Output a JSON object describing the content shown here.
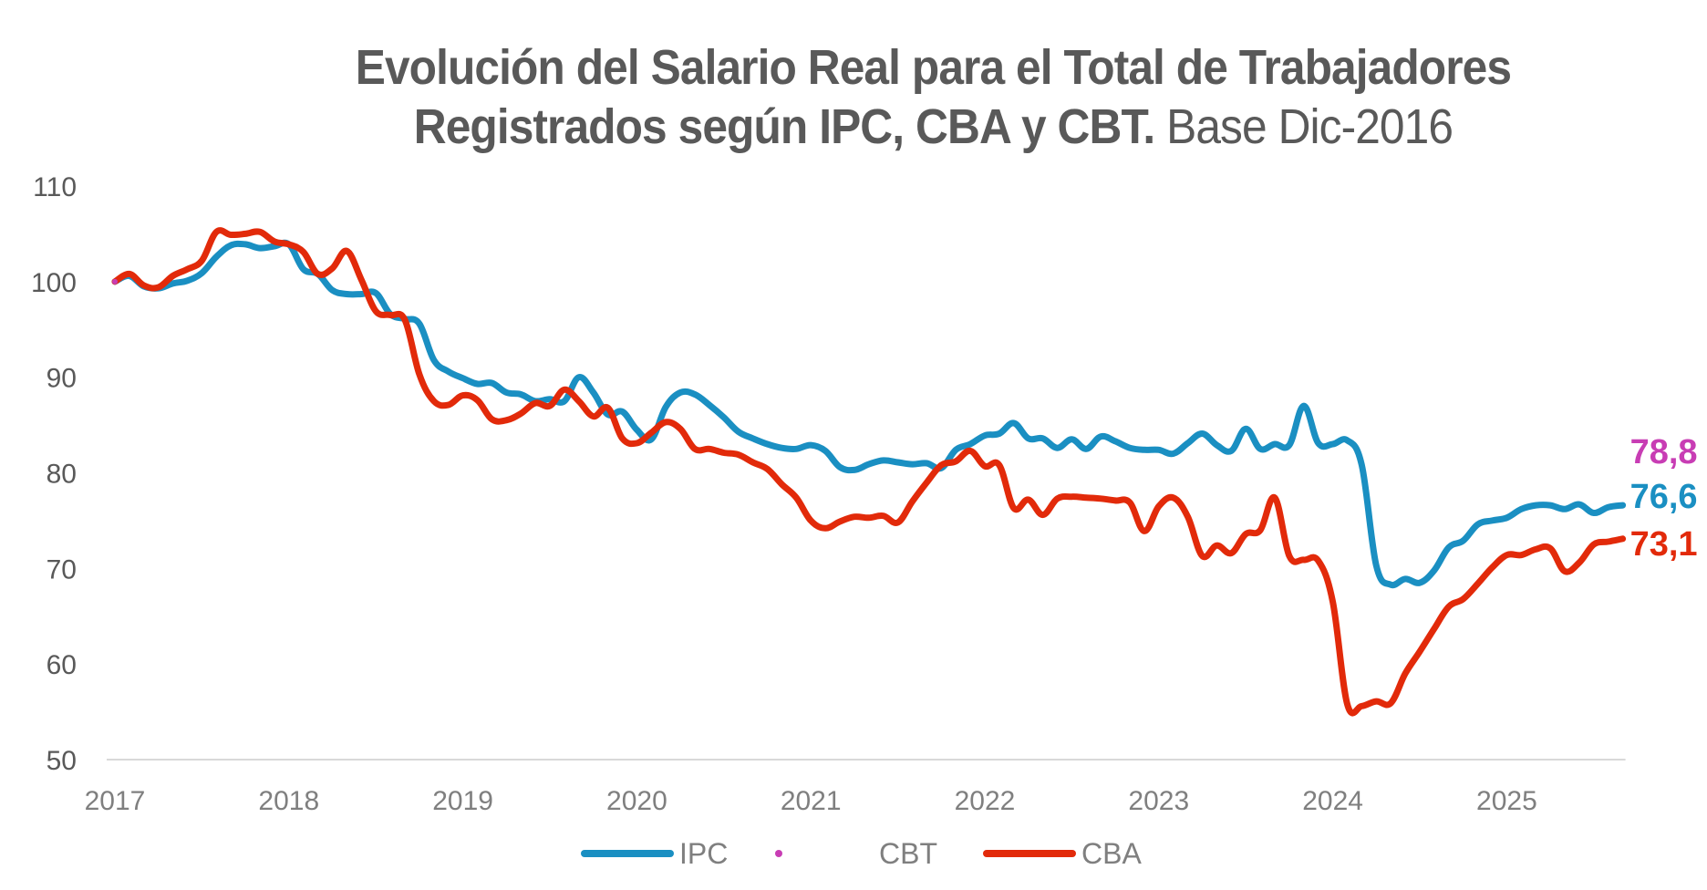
{
  "title": {
    "line1": "Evolución del Salario Real para el Total de Trabajadores",
    "line2_bold": "Registrados según IPC, CBA y CBT.",
    "line2_light": " Base Dic-2016"
  },
  "colors": {
    "IPC": "#1a8fc2",
    "CBT": "#c83db4",
    "CBA": "#e22a0a",
    "axis": "#d9d9d9",
    "text": "#595959"
  },
  "legend": [
    {
      "name": "IPC",
      "style": "line"
    },
    {
      "name": "CBT",
      "style": "dot"
    },
    {
      "name": "CBA",
      "style": "line"
    }
  ],
  "end_labels": {
    "CBT": "78,8",
    "IPC": "76,6",
    "CBA": "73,1"
  },
  "chart_data": {
    "type": "line",
    "title": "Evolución del Salario Real para el Total de Trabajadores Registrados según IPC, CBA y CBT. Base Dic-2016",
    "xlabel": "",
    "ylabel": "",
    "ylim": [
      50,
      110
    ],
    "yticks": [
      "50",
      "60",
      "70",
      "80",
      "90",
      "100",
      "110"
    ],
    "xticks": [
      "2017",
      "2018",
      "2019",
      "2020",
      "2021",
      "2022",
      "2023",
      "2024",
      "2025"
    ],
    "x_start": "Dic-2016",
    "x_end": "Jul-2025",
    "frequency": "monthly",
    "grid": false,
    "legend_position": "bottom",
    "series": [
      {
        "name": "IPC",
        "values": [
          100.0,
          100.6,
          99.5,
          99.3,
          99.8,
          100.1,
          100.9,
          102.6,
          103.8,
          103.9,
          103.5,
          103.7,
          103.9,
          101.3,
          100.8,
          99.1,
          98.7,
          98.7,
          98.8,
          96.6,
          96.1,
          95.6,
          91.8,
          90.6,
          89.9,
          89.3,
          89.4,
          88.4,
          88.2,
          87.5,
          87.7,
          87.5,
          90.0,
          88.4,
          86.1,
          86.4,
          84.5,
          83.5,
          86.9,
          88.4,
          88.2,
          87.1,
          85.8,
          84.3,
          83.6,
          83.0,
          82.6,
          82.5,
          82.9,
          82.3,
          80.6,
          80.3,
          80.9,
          81.3,
          81.1,
          80.9,
          81.0,
          80.5,
          82.4,
          83.0,
          83.9,
          84.1,
          85.2,
          83.6,
          83.6,
          82.6,
          83.5,
          82.5,
          83.8,
          83.3,
          82.6,
          82.4,
          82.4,
          82.0,
          83.1,
          84.1,
          82.9,
          82.3,
          84.6,
          82.5,
          83.0,
          82.9,
          87.0,
          83.1,
          83.0,
          83.4,
          80.8,
          70.3,
          68.3,
          68.9,
          68.5,
          69.8,
          72.2,
          72.9,
          74.6,
          75.0,
          75.3,
          76.2,
          76.6,
          76.6,
          76.2,
          76.7,
          75.8,
          76.4,
          76.6
        ],
        "last_label": "76,6"
      },
      {
        "name": "CBA",
        "values": [
          100.0,
          100.8,
          99.6,
          99.4,
          100.6,
          101.3,
          102.2,
          105.2,
          104.9,
          105.0,
          105.2,
          104.2,
          103.9,
          103.1,
          100.8,
          101.4,
          103.2,
          100.2,
          96.9,
          96.5,
          96.0,
          90.3,
          87.5,
          87.1,
          88.1,
          87.6,
          85.6,
          85.5,
          86.2,
          87.3,
          87.0,
          88.7,
          87.5,
          85.9,
          86.8,
          83.6,
          83.1,
          84.2,
          85.3,
          84.6,
          82.5,
          82.5,
          82.1,
          81.9,
          81.1,
          80.4,
          78.8,
          77.4,
          75.0,
          74.2,
          74.9,
          75.4,
          75.3,
          75.5,
          74.8,
          77.0,
          79.0,
          80.8,
          81.2,
          82.3,
          80.7,
          80.8,
          76.3,
          77.2,
          75.6,
          77.3,
          77.5,
          77.4,
          77.3,
          77.1,
          76.9,
          73.9,
          76.5,
          77.4,
          75.4,
          71.3,
          72.4,
          71.6,
          73.6,
          74.0,
          77.4,
          71.3,
          70.9,
          70.8,
          66.5,
          55.8,
          55.6,
          56.1,
          55.9,
          59.0,
          61.3,
          63.7,
          66.0,
          66.8,
          68.4,
          70.1,
          71.4,
          71.4,
          72.0,
          72.1,
          69.7,
          70.6,
          72.5,
          72.8,
          73.1
        ],
        "last_label": "73,1"
      },
      {
        "name": "CBT",
        "values": [
          100.0
        ],
        "last_label": "78,8",
        "note": "only shown as a marker at start and end label"
      }
    ]
  }
}
